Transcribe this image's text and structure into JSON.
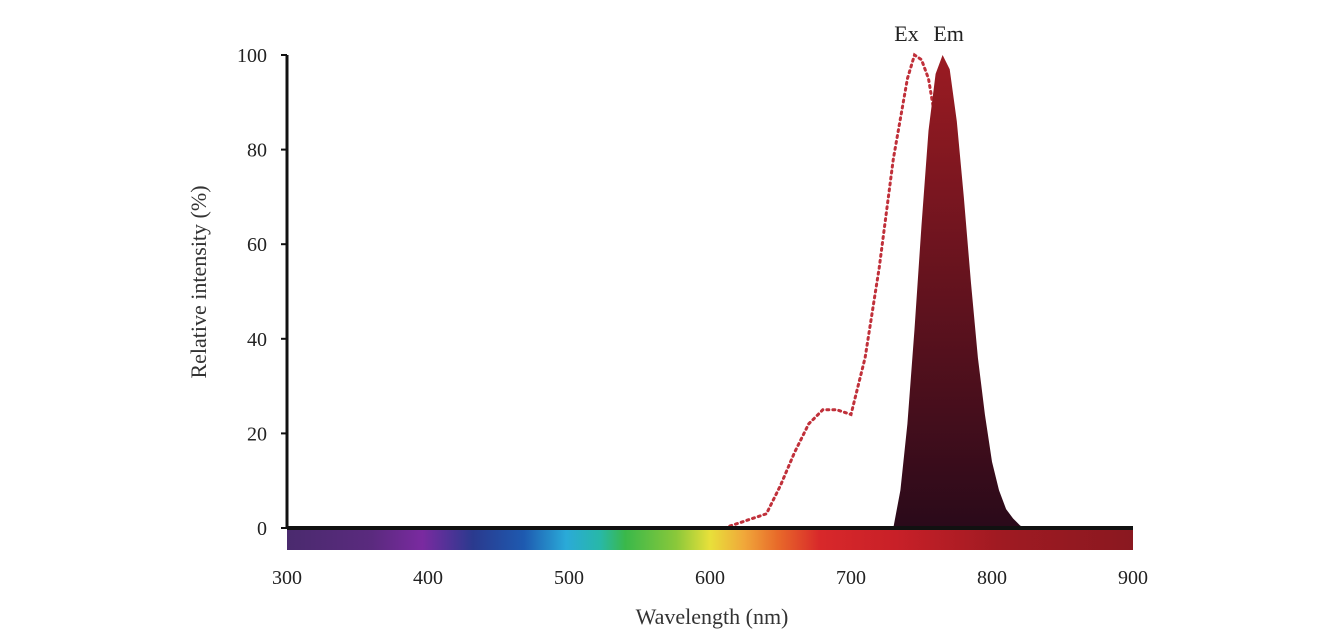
{
  "chart_data": {
    "type": "area",
    "xlabel": "Wavelength (nm)",
    "ylabel": "Relative intensity (%)",
    "xlim": [
      300,
      900
    ],
    "ylim": [
      0,
      100
    ],
    "x_ticks": [
      300,
      400,
      500,
      600,
      700,
      800,
      900
    ],
    "y_ticks": [
      0,
      20,
      40,
      60,
      80,
      100
    ],
    "grid": false,
    "spectrum_bar": true,
    "series": [
      {
        "name": "Ex",
        "style": "dotted-line",
        "color": "#c0303a",
        "x": [
          610,
          620,
          630,
          640,
          650,
          660,
          670,
          680,
          690,
          700,
          710,
          720,
          730,
          740,
          745,
          750,
          755,
          760,
          765,
          770,
          775,
          780,
          785,
          790
        ],
        "y": [
          0,
          1,
          2,
          3,
          9,
          16,
          22,
          25,
          25,
          24,
          36,
          55,
          78,
          95,
          100,
          99,
          95,
          86,
          72,
          58,
          42,
          25,
          10,
          0
        ]
      },
      {
        "name": "Em",
        "style": "filled-area",
        "color": "#5a1020",
        "x": [
          730,
          735,
          740,
          745,
          750,
          755,
          760,
          765,
          770,
          775,
          780,
          785,
          790,
          795,
          800,
          805,
          810,
          815,
          820,
          825
        ],
        "y": [
          0,
          8,
          22,
          42,
          64,
          84,
          96,
          100,
          97,
          86,
          70,
          52,
          36,
          24,
          14,
          8,
          4,
          2,
          0.5,
          0
        ]
      }
    ],
    "colors": {
      "axis": "#111111",
      "em_top": "#9b1b22",
      "em_bottom": "#2a0a1a",
      "ex_line": "#c0303a"
    }
  }
}
